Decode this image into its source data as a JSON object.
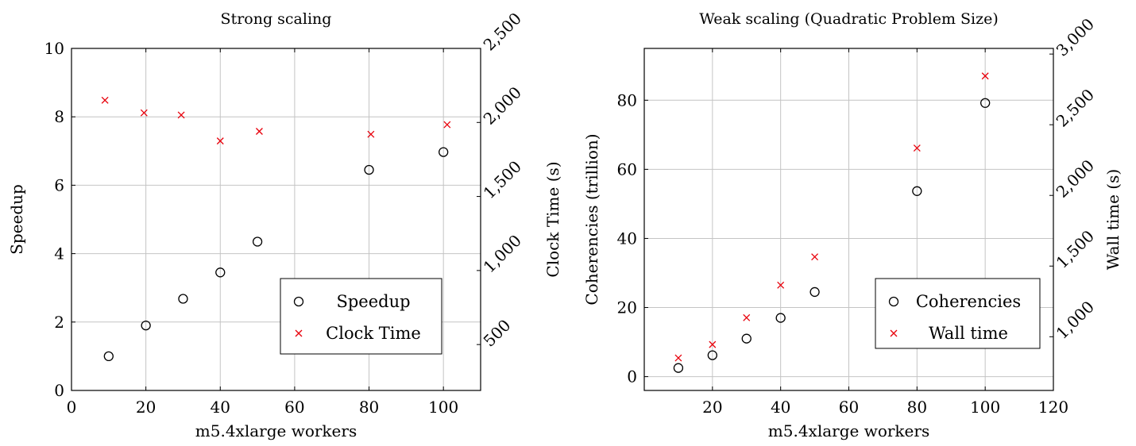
{
  "chart_data": [
    {
      "type": "scatter",
      "title": "Strong scaling",
      "xlabel": "m5.4xlarge workers",
      "ylabel": "Speedup",
      "y2label": "Clock Time (s)",
      "xlim": [
        0,
        110
      ],
      "ylim": [
        0,
        10
      ],
      "y2lim": [
        190,
        2500
      ],
      "xticks": [
        "0",
        "20",
        "40",
        "60",
        "80",
        "100"
      ],
      "yticks": [
        "0",
        "2",
        "4",
        "6",
        "8",
        "10"
      ],
      "y2ticks": [
        "500",
        "1,000",
        "1,500",
        "2,000",
        "2,500"
      ],
      "grid": true,
      "legend_position": "bottom-right",
      "series": [
        {
          "name": "Speedup",
          "axis": "left",
          "marker": "circle",
          "color": "#000000",
          "x": [
            10,
            20,
            30,
            40,
            50,
            80,
            100
          ],
          "y": [
            1.0,
            1.9,
            2.68,
            3.45,
            4.35,
            6.45,
            6.97
          ]
        },
        {
          "name": "Clock Time",
          "axis": "right",
          "marker": "x",
          "color": "#e8000b",
          "x": [
            9,
            19.5,
            29.5,
            40,
            50.5,
            80.5,
            101
          ],
          "y": [
            2150,
            2065,
            2050,
            1875,
            1940,
            1920,
            1985
          ]
        }
      ]
    },
    {
      "type": "scatter",
      "title": "Weak scaling (Quadratic Problem Size)",
      "xlabel": "m5.4xlarge workers",
      "ylabel": "Coherencies (trillion)",
      "y2label": "Wall time (s)",
      "xlim": [
        0,
        120
      ],
      "ylim": [
        -4,
        95
      ],
      "y2lim": [
        620,
        3040
      ],
      "xticks": [
        "20",
        "40",
        "60",
        "80",
        "100",
        "120"
      ],
      "yticks": [
        "0",
        "20",
        "40",
        "60",
        "80"
      ],
      "y2ticks": [
        "1,000",
        "1,500",
        "2,000",
        "2,500",
        "3,000"
      ],
      "grid": true,
      "legend_position": "bottom-right",
      "series": [
        {
          "name": "Coherencies",
          "axis": "left",
          "marker": "circle",
          "color": "#000000",
          "x": [
            10,
            20,
            30,
            40,
            50,
            80,
            100
          ],
          "y": [
            2.5,
            6.2,
            11.0,
            17.0,
            24.5,
            53.7,
            79.2
          ]
        },
        {
          "name": "Wall time",
          "axis": "right",
          "marker": "x",
          "color": "#e8000b",
          "x": [
            10,
            20,
            30,
            40,
            50,
            80,
            100
          ],
          "y": [
            850,
            945,
            1135,
            1365,
            1565,
            2335,
            2845
          ]
        }
      ]
    }
  ]
}
